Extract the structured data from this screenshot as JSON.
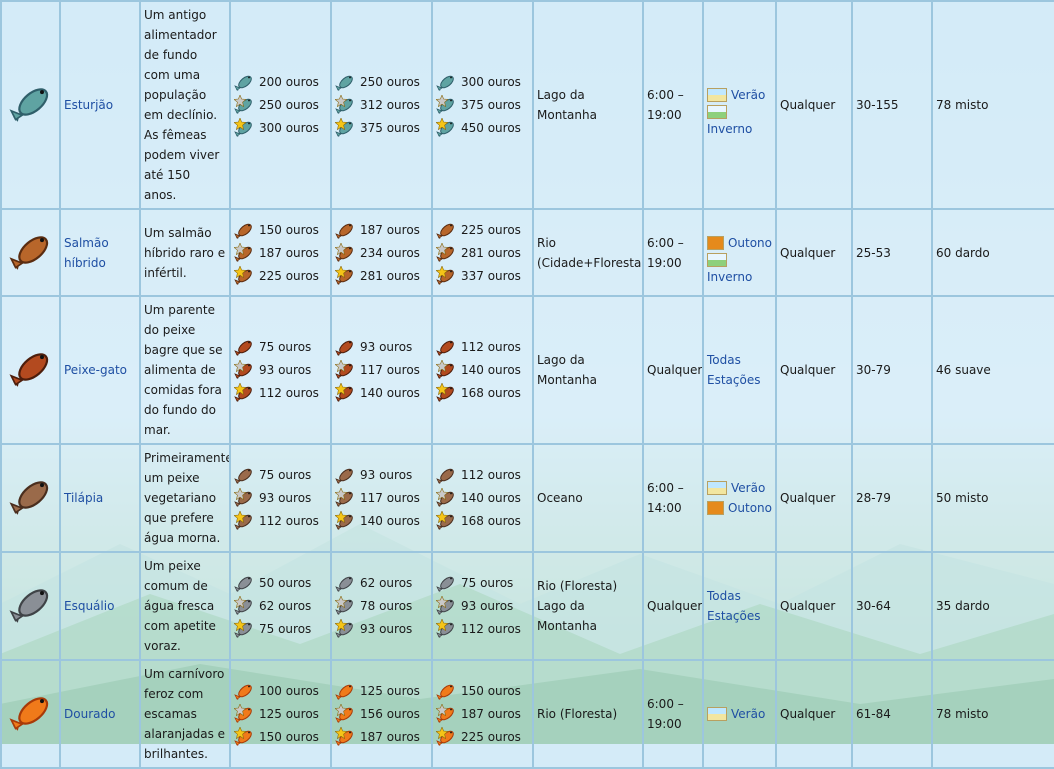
{
  "colors": {
    "link": "#1f4fa3",
    "border": "#9cc6de"
  },
  "fish": [
    {
      "icon": "sturgeon-icon",
      "color": "#5fa3a2",
      "accent": "#2f5f6a",
      "name": "Esturjão",
      "description": "Um antigo alimentador de fundo com uma população em declínio. As fêmeas podem viver até 150 anos.",
      "prices": [
        [
          "200 ouros",
          "250 ouros",
          "300 ouros"
        ],
        [
          "250 ouros",
          "312 ouros",
          "375 ouros"
        ],
        [
          "300 ouros",
          "375 ouros",
          "450 ouros"
        ]
      ],
      "location": "Lago da Montanha",
      "time": "6:00 – 19:00",
      "seasons": [
        {
          "icon": "summer",
          "label": "Verão"
        },
        {
          "icon": "winter",
          "label": "Inverno"
        }
      ],
      "weather": "Qualquer",
      "size": "30-155",
      "difficulty": "78 misto"
    },
    {
      "icon": "salmon-icon",
      "color": "#b8662a",
      "accent": "#5a2c10",
      "name": "Salmão híbrido",
      "description": "Um salmão híbrido raro e infértil.",
      "prices": [
        [
          "150 ouros",
          "187 ouros",
          "225 ouros"
        ],
        [
          "187 ouros",
          "234 ouros",
          "281 ouros"
        ],
        [
          "225 ouros",
          "281 ouros",
          "337 ouros"
        ]
      ],
      "location": "Rio (Cidade+Floresta)",
      "time": "6:00 – 19:00",
      "seasons": [
        {
          "icon": "fall",
          "label": "Outono"
        },
        {
          "icon": "winter",
          "label": "Inverno"
        }
      ],
      "weather": "Qualquer",
      "size": "25-53",
      "difficulty": "60 dardo"
    },
    {
      "icon": "catfish-icon",
      "color": "#b34a1f",
      "accent": "#4d1e0c",
      "name": "Peixe-gato",
      "description": "Um parente do peixe bagre que se alimenta de comidas fora do fundo do mar.",
      "prices": [
        [
          "75 ouros",
          "93 ouros",
          "112 ouros"
        ],
        [
          "93 ouros",
          "117 ouros",
          "140 ouros"
        ],
        [
          "112 ouros",
          "140 ouros",
          "168 ouros"
        ]
      ],
      "location": "Lago da Montanha",
      "time": "Qualquer",
      "seasons": [
        {
          "icon": "",
          "label": "Todas"
        },
        {
          "icon": "",
          "label": "Estações"
        }
      ],
      "weather": "Qualquer",
      "size": "30-79",
      "difficulty": "46 suave"
    },
    {
      "icon": "tilapia-icon",
      "color": "#9a6a4a",
      "accent": "#4a2e1e",
      "name": "Tilápia",
      "description": "Primeiramente um peixe vegetariano que prefere água morna.",
      "prices": [
        [
          "75 ouros",
          "93 ouros",
          "112 ouros"
        ],
        [
          "93 ouros",
          "117 ouros",
          "140 ouros"
        ],
        [
          "112 ouros",
          "140 ouros",
          "168 ouros"
        ]
      ],
      "location": "Oceano",
      "time": "6:00 – 14:00",
      "seasons": [
        {
          "icon": "summer",
          "label": "Verão"
        },
        {
          "icon": "fall",
          "label": "Outono"
        }
      ],
      "weather": "Qualquer",
      "size": "28-79",
      "difficulty": "50 misto"
    },
    {
      "icon": "chub-icon",
      "color": "#8a8f96",
      "accent": "#3f4347",
      "name": "Esquálio",
      "description": "Um peixe comum de água fresca com apetite voraz.",
      "prices": [
        [
          "50 ouros",
          "62 ouros",
          "75 ouros"
        ],
        [
          "62 ouros",
          "78 ouros",
          "93 ouros"
        ],
        [
          "75 ouros",
          "93 ouros",
          "112 ouros"
        ]
      ],
      "location": "Rio (Floresta) Lago da Montanha",
      "time": "Qualquer",
      "seasons": [
        {
          "icon": "",
          "label": "Todas"
        },
        {
          "icon": "",
          "label": "Estações"
        }
      ],
      "weather": "Qualquer",
      "size": "30-64",
      "difficulty": "35 dardo"
    },
    {
      "icon": "dorado-icon",
      "color": "#f07a1a",
      "accent": "#a83a08",
      "name": "Dourado",
      "description": "Um carnívoro feroz com escamas alaranjadas e brilhantes.",
      "prices": [
        [
          "100 ouros",
          "125 ouros",
          "150 ouros"
        ],
        [
          "125 ouros",
          "156 ouros",
          "187 ouros"
        ],
        [
          "150 ouros",
          "187 ouros",
          "225 ouros"
        ]
      ],
      "location": "Rio (Floresta)",
      "time": "6:00 – 19:00",
      "seasons": [
        {
          "icon": "summer",
          "label": "Verão"
        }
      ],
      "weather": "Qualquer",
      "size": "61-84",
      "difficulty": "78 misto"
    }
  ]
}
